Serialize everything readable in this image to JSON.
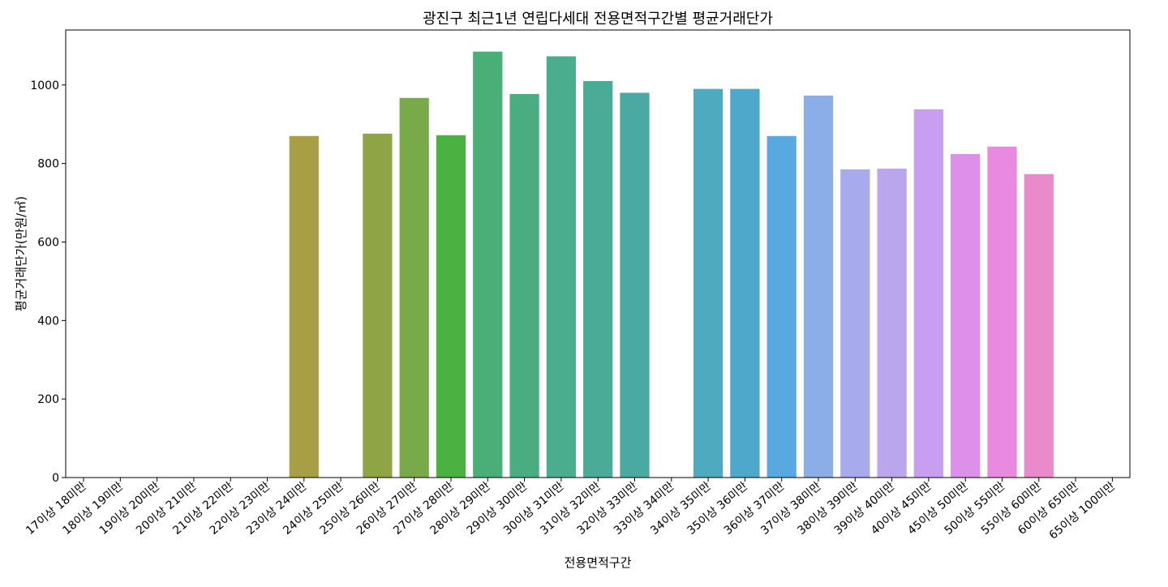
{
  "chart_data": {
    "type": "bar",
    "title": "광진구 최근1년 연립다세대 전용면적구간별 평균거래단가",
    "xlabel": "전용면적구간",
    "ylabel": "평균거래단가(만원/㎡)",
    "ylim": [
      0,
      1140
    ],
    "yticks": [
      0,
      200,
      400,
      600,
      800,
      1000
    ],
    "grid": false,
    "categories": [
      "17이상 18미만",
      "18이상 19미만",
      "19이상 20미만",
      "20이상 21미만",
      "21이상 22미만",
      "22이상 23미만",
      "23이상 24미만",
      "24이상 25미만",
      "25이상 26미만",
      "26이상 27미만",
      "27이상 28미만",
      "28이상 29미만",
      "29이상 30미만",
      "30이상 31미만",
      "31이상 32미만",
      "32이상 33미만",
      "33이상 34미만",
      "34이상 35미만",
      "35이상 36미만",
      "36이상 37미만",
      "37이상 38미만",
      "38이상 39미만",
      "39이상 40미만",
      "40이상 45미만",
      "45이상 50미만",
      "50이상 55미만",
      "55이상 60미만",
      "60이상 65미만",
      "65이상 100미만"
    ],
    "values": [
      null,
      null,
      null,
      null,
      null,
      null,
      870,
      null,
      876,
      967,
      872,
      1085,
      977,
      1073,
      1010,
      980,
      null,
      990,
      990,
      870,
      973,
      785,
      787,
      938,
      824,
      843,
      773,
      null,
      null
    ],
    "colors": [
      "#f77189",
      "#f7754f",
      "#dc8932",
      "#c39532",
      "#ae9d31",
      "#97a431",
      "#a89e44",
      "#a89e44",
      "#8fa445",
      "#79aa49",
      "#4bb241",
      "#4aae77",
      "#4aad82",
      "#4aad8e",
      "#4aac97",
      "#4aa9a3",
      "#4aa9a3",
      "#4eaabf",
      "#4ea8cc",
      "#58a9e0",
      "#8caee8",
      "#a7aaec",
      "#baa6ec",
      "#c79ef0",
      "#dc90ea",
      "#e78ae0",
      "#e98bcb",
      "#f566b8",
      "#f66e9c"
    ]
  }
}
